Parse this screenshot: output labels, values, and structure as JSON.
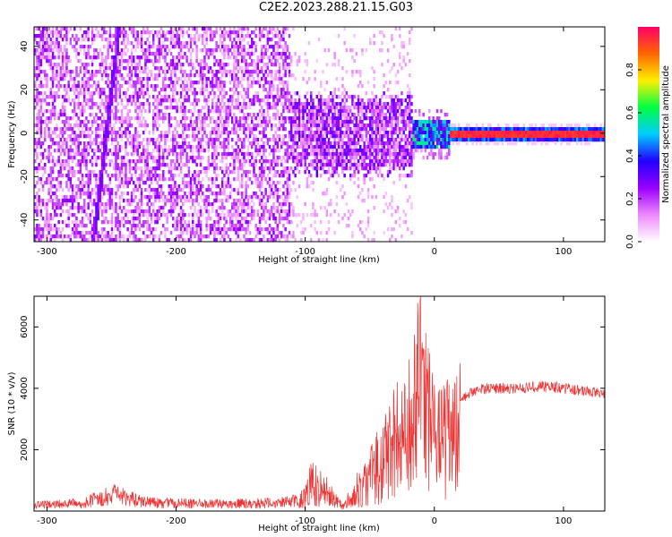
{
  "title": "C2E2.2023.288.21.15.G03",
  "chart_data": [
    {
      "type": "heatmap",
      "xlabel": "Height of straight line (km)",
      "ylabel": "Frequency (Hz)",
      "xlim": [
        -310,
        132
      ],
      "ylim": [
        -50,
        49
      ],
      "x_ticks": [
        -300,
        -200,
        -100,
        0,
        100
      ],
      "x_tick_labels": [
        "-300",
        "-200",
        "-100",
        "0",
        "100"
      ],
      "y_ticks": [
        -40,
        -20,
        0,
        20,
        40
      ],
      "y_tick_labels": [
        "-40",
        "-20",
        "0",
        "20",
        "40"
      ],
      "colorbar": {
        "label": "Normalized spectral amplitude",
        "range": [
          0,
          1
        ],
        "ticks": [
          0.0,
          0.2,
          0.4,
          0.6,
          0.8
        ],
        "tick_labels": [
          "0.0",
          "0.2",
          "0.4",
          "0.6",
          "0.8"
        ],
        "colors": [
          "#ffffff",
          "#ee88ff",
          "#9900ff",
          "#2200ff",
          "#00ccff",
          "#00ff44",
          "#ffee00",
          "#ff6600",
          "#ff0066"
        ]
      },
      "regions": [
        {
          "x_range": [
            -310,
            -112
          ],
          "freq_range": [
            -50,
            49
          ],
          "amplitude": "low (0.05-0.25)",
          "note": "noise"
        },
        {
          "x_range": [
            -270,
            -245
          ],
          "freq_range": [
            -50,
            49
          ],
          "amplitude": "0.2-0.3",
          "note": "slanted streak, frequency from -50 Hz at -265 km to 49 Hz at -245 km"
        },
        {
          "x_range": [
            -112,
            -18
          ],
          "freq_range": [
            -15,
            15
          ],
          "amplitude": "0.1-0.35"
        },
        {
          "x_range": [
            -18,
            12
          ],
          "freq_range": [
            -8,
            8
          ],
          "amplitude": "0.3-0.6"
        },
        {
          "x_range": [
            12,
            132
          ],
          "freq_range": [
            -3,
            3
          ],
          "amplitude": "0.9-1.0",
          "note": "steady carrier line near 0 Hz"
        }
      ]
    },
    {
      "type": "line",
      "xlabel": "Height of straight line (km)",
      "ylabel": "SNR (10 * v/v)",
      "xlim": [
        -310,
        132
      ],
      "ylim": [
        0,
        7000
      ],
      "x_ticks": [
        -300,
        -200,
        -100,
        0,
        100
      ],
      "x_tick_labels": [
        "-300",
        "-200",
        "-100",
        "0",
        "100"
      ],
      "y_ticks": [
        2000,
        4000,
        6000
      ],
      "y_tick_labels": [
        "2000",
        "4000",
        "6000"
      ],
      "color": "#ee3333",
      "series": [
        {
          "x": [
            -310,
            -290,
            -270,
            -260,
            -250,
            -240,
            -230,
            -220,
            -200,
            -180,
            -160,
            -140,
            -120,
            -110,
            -100,
            -95,
            -90,
            -85,
            -80,
            -75,
            -70,
            -65,
            -60,
            -55,
            -50,
            -45,
            -40,
            -35,
            -30,
            -25,
            -20,
            -15,
            -12,
            -10,
            -5,
            0,
            5,
            10,
            15,
            20,
            25,
            30,
            40,
            50,
            60,
            70,
            80,
            90,
            100,
            110,
            120,
            132
          ],
          "y": [
            220,
            250,
            300,
            450,
            600,
            500,
            380,
            300,
            280,
            270,
            260,
            280,
            300,
            350,
            600,
            1200,
            1000,
            900,
            600,
            400,
            350,
            500,
            900,
            1200,
            1500,
            1900,
            2100,
            2600,
            3200,
            3300,
            3500,
            4200,
            5500,
            5200,
            4000,
            3000,
            2900,
            3200,
            3000,
            3500,
            3800,
            3900,
            4000,
            4000,
            4000,
            4000,
            4050,
            4050,
            4000,
            3950,
            3900,
            3800
          ]
        }
      ]
    }
  ]
}
